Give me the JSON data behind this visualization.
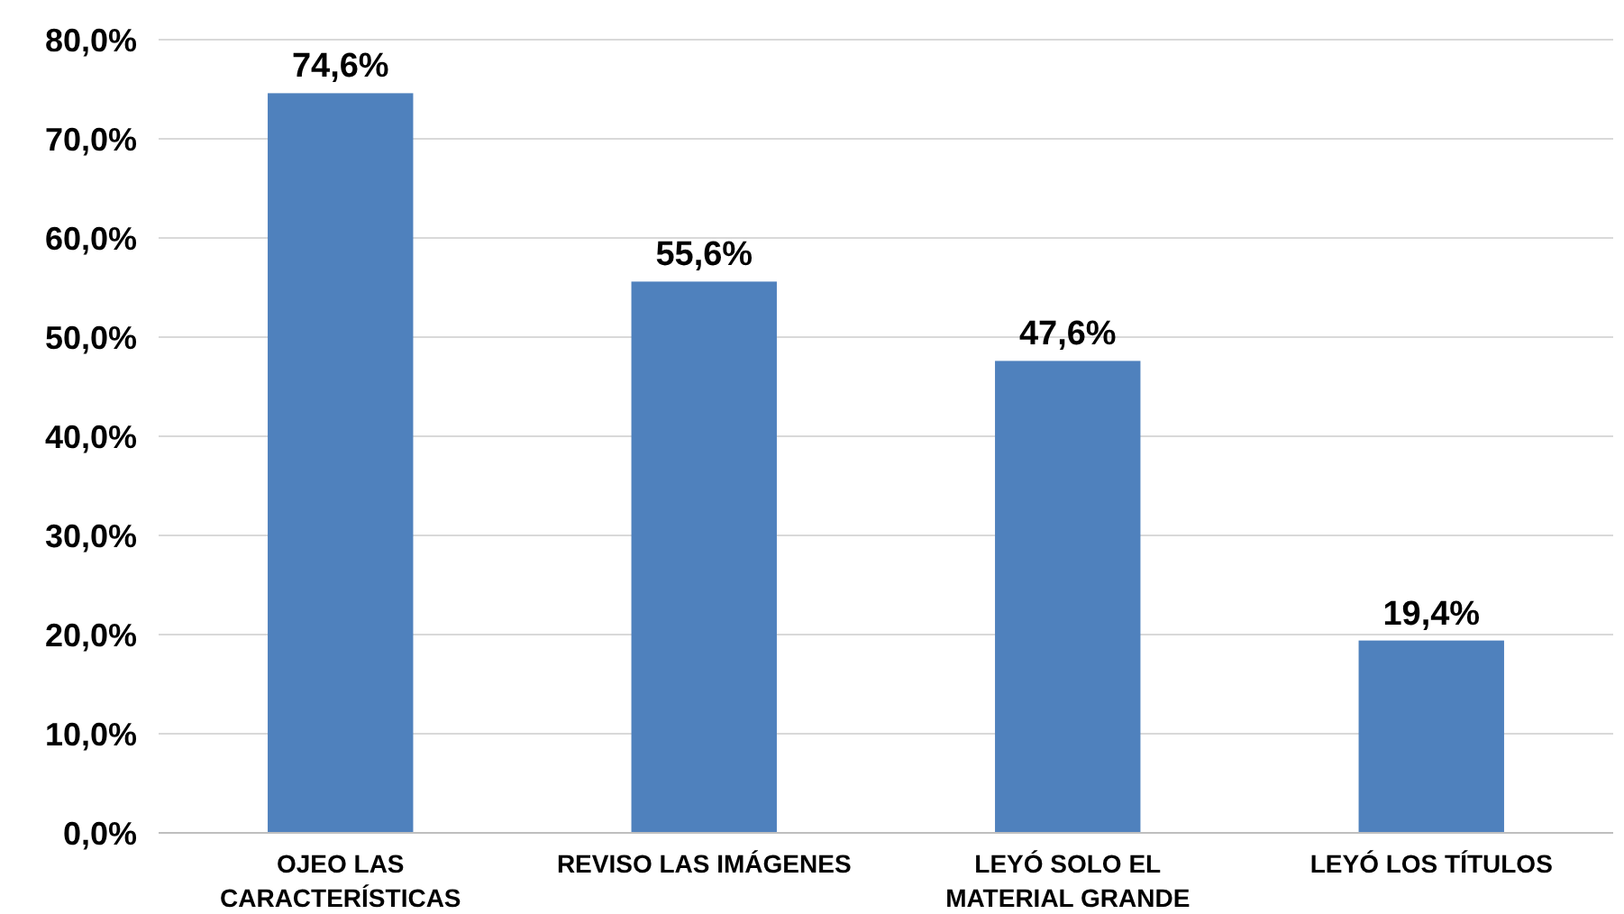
{
  "chart_data": {
    "type": "bar",
    "categories": [
      "OJEO LAS CARACTERÍSTICAS",
      "REVISO LAS IMÁGENES",
      "LEYÓ SOLO EL MATERIAL GRANDE",
      "LEYÓ LOS TÍTULOS"
    ],
    "values": [
      74.6,
      55.6,
      47.6,
      19.4
    ],
    "value_labels": [
      "74,6%",
      "55,6%",
      "47,6%",
      "19,4%"
    ],
    "color": "#4f81bd",
    "ylim": [
      0,
      80
    ],
    "yticks": [
      {
        "value": 0,
        "label": "0,0%"
      },
      {
        "value": 10,
        "label": "10,0%"
      },
      {
        "value": 20,
        "label": "20,0%"
      },
      {
        "value": 30,
        "label": "30,0%"
      },
      {
        "value": 40,
        "label": "40,0%"
      },
      {
        "value": 50,
        "label": "50,0%"
      },
      {
        "value": 60,
        "label": "60,0%"
      },
      {
        "value": 70,
        "label": "70,0%"
      },
      {
        "value": 80,
        "label": "80,0%"
      }
    ],
    "grid": "y"
  }
}
